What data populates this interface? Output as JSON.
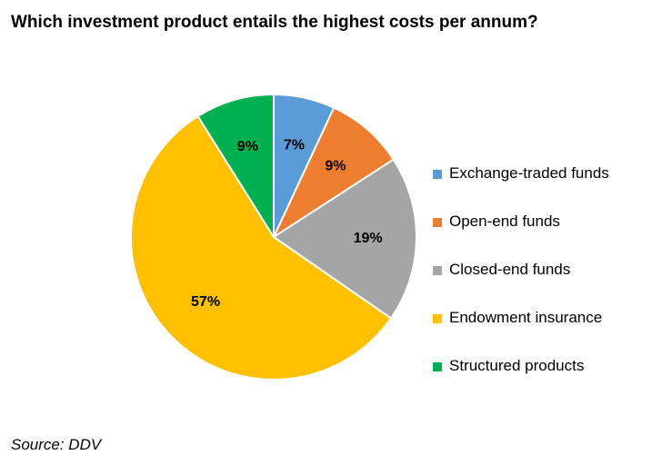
{
  "chart_data": {
    "type": "pie",
    "title": "Which investment product entails the highest costs per annum?",
    "slices": [
      {
        "label": "Exchange-traded funds",
        "value": 7,
        "value_label": "7%",
        "color": "#5B9BD5"
      },
      {
        "label": "Open-end funds",
        "value": 9,
        "value_label": "9%",
        "color": "#ED7D31"
      },
      {
        "label": "Closed-end funds",
        "value": 19,
        "value_label": "19%",
        "color": "#A5A5A5"
      },
      {
        "label": "Endowment insurance",
        "value": 57,
        "value_label": "57%",
        "color": "#FFC000"
      },
      {
        "label": "Structured products",
        "value": 9,
        "value_label": "9%",
        "color": "#00B050"
      }
    ],
    "start": "12 o'clock",
    "direction": "clockwise",
    "legend_position": "right",
    "source": "Source: DDV"
  }
}
